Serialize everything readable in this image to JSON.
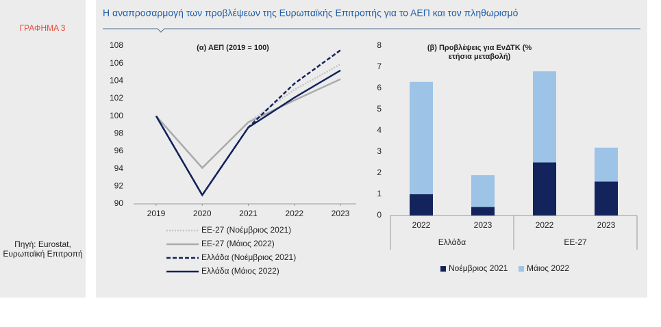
{
  "figure_label": "ΓΡΑΦΗΜΑ 3",
  "title": "Η αναπροσαρμογή των προβλέψεων της Ευρωπαϊκής Επιτροπής για το ΑΕΠ και τον πληθωρισμό",
  "source": "Πηγή: Eurostat, Ευρωπαϊκή Επιτροπή",
  "chart_data": [
    {
      "type": "line",
      "title": "(α) ΑΕΠ (2019 = 100)",
      "x": [
        2019,
        2020,
        2021,
        2022,
        2023
      ],
      "xlim": [
        2019,
        2023
      ],
      "xticks": [
        2019,
        2020,
        2021,
        2022,
        2023
      ],
      "ylim": [
        90,
        108
      ],
      "yticks": [
        90,
        92,
        94,
        96,
        98,
        100,
        102,
        104,
        106,
        108
      ],
      "series": [
        {
          "name": "ΕΕ-27 (Νοέμβριος 2021)",
          "color": "#c4c4c4",
          "dash": "dotted",
          "values": [
            100,
            94.1,
            99.3,
            103.0,
            105.9
          ]
        },
        {
          "name": "ΕΕ-27 (Μάιος 2022)",
          "color": "#ababab",
          "dash": "solid",
          "values": [
            100,
            94.1,
            99.3,
            101.8,
            104.2
          ]
        },
        {
          "name": "Ελλάδα (Νοέμβριος 2021)",
          "color": "#13235b",
          "dash": "dashed",
          "values": [
            100,
            91.0,
            98.7,
            103.7,
            107.5
          ]
        },
        {
          "name": "Ελλάδα (Μάιος 2022)",
          "color": "#13235b",
          "dash": "solid",
          "values": [
            100,
            91.0,
            98.7,
            102.1,
            105.2
          ]
        }
      ]
    },
    {
      "type": "stacked_bar",
      "title": "(β) Προβλέψεις για ΕνΔΤΚ (% ετήσια μεταβολή)",
      "categories": [
        "2022",
        "2023",
        "2022",
        "2023"
      ],
      "groups": [
        "Ελλάδα",
        "ΕΕ-27"
      ],
      "ylim": [
        0,
        8
      ],
      "yticks": [
        0,
        1,
        2,
        3,
        4,
        5,
        6,
        7,
        8
      ],
      "series": [
        {
          "name": "Νοέμβριος 2021",
          "color": "#13235b",
          "values": [
            1.0,
            0.4,
            2.5,
            1.6
          ]
        },
        {
          "name": "Μάιος 2022",
          "color": "#9dc3e6",
          "values": [
            5.3,
            1.5,
            4.3,
            1.6
          ]
        }
      ]
    }
  ]
}
